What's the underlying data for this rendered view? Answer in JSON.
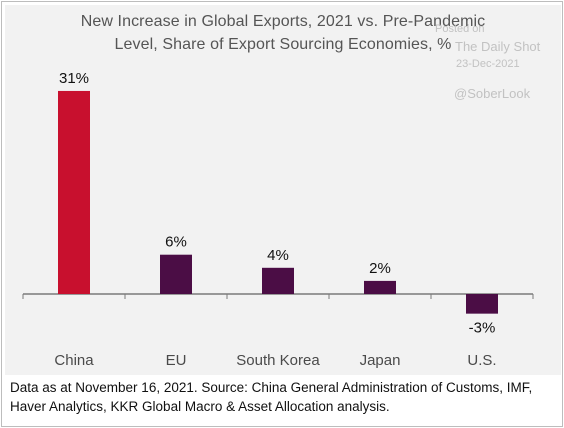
{
  "watermark": {
    "posted": "Posted on",
    "source": "The Daily Shot",
    "date": "23-Dec-2021",
    "handle": "@SoberLook"
  },
  "footnote": {
    "line1": "Data as at November 16, 2021. Source: China General Administration of Customs, IMF,",
    "line2": "Haver Analytics, KKR Global Macro & Asset Allocation analysis."
  },
  "chart_data": {
    "type": "bar",
    "title_lines": [
      "New Increase in Global Exports, 2021 vs. Pre-Pandemic",
      "Level, Share of Export Sourcing Economies, %"
    ],
    "title": "New Increase in Global Exports, 2021 vs. Pre-Pandemic Level, Share of Export Sourcing Economies, %",
    "categories": [
      "China",
      "EU",
      "South Korea",
      "Japan",
      "U.S."
    ],
    "values": [
      31,
      6,
      4,
      2,
      -3
    ],
    "data_labels": [
      "31%",
      "6%",
      "4%",
      "2%",
      "-3%"
    ],
    "colors": [
      "#c8102e",
      "#4b0d45",
      "#4b0d45",
      "#4b0d45",
      "#4b0d45"
    ],
    "ylim": [
      -5,
      33
    ],
    "grid": false,
    "xlabel": "",
    "ylabel": ""
  }
}
